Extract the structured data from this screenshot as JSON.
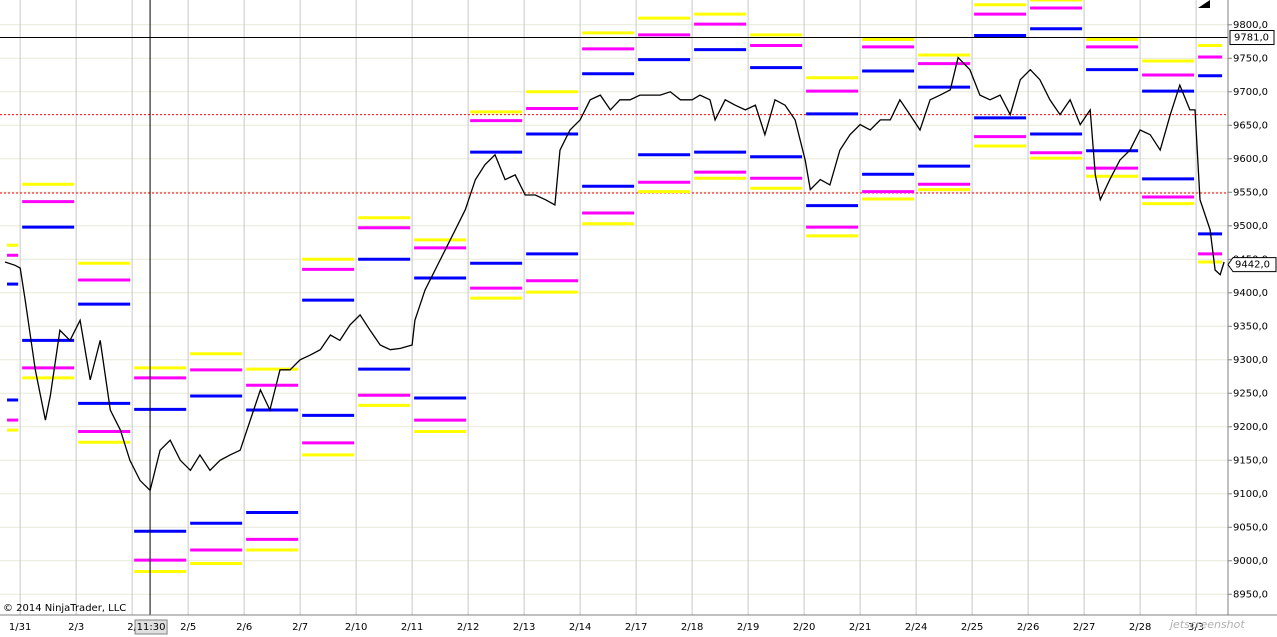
{
  "chart_data": {
    "type": "line",
    "categories": [
      "1/31",
      "2/3",
      "2/",
      "2/5",
      "2/6",
      "2/7",
      "2/10",
      "2/11",
      "2/12",
      "2/13",
      "2/14",
      "2/17",
      "2/18",
      "2/19",
      "2/20",
      "2/21",
      "2/24",
      "2/25",
      "2/26",
      "2/27",
      "2/28",
      "3/3"
    ],
    "xlim": [
      -0.36,
      21.57
    ],
    "ylim": [
      8934,
      9837
    ],
    "yticks": [
      {
        "value": 8950,
        "label": "8950,0"
      },
      {
        "value": 9000,
        "label": "9000,0"
      },
      {
        "value": 9050,
        "label": "9050,0"
      },
      {
        "value": 9100,
        "label": "9100,0"
      },
      {
        "value": 9150,
        "label": "9150,0"
      },
      {
        "value": 9200,
        "label": "9200,0"
      },
      {
        "value": 9250,
        "label": "9250,0"
      },
      {
        "value": 9300,
        "label": "9300,0"
      },
      {
        "value": 9350,
        "label": "9350,0"
      },
      {
        "value": 9400,
        "label": "9400,0"
      },
      {
        "value": 9450,
        "label": "9450,0"
      },
      {
        "value": 9500,
        "label": "9500,0"
      },
      {
        "value": 9550,
        "label": "9550,0"
      },
      {
        "value": 9600,
        "label": "9600,0"
      },
      {
        "value": 9650,
        "label": "9650,0"
      },
      {
        "value": 9700,
        "label": "9700,0"
      },
      {
        "value": 9750,
        "label": "9750,0"
      },
      {
        "value": 9800,
        "label": "9800,0"
      }
    ],
    "grid": true,
    "x": [
      -0.27,
      -0.09,
      0,
      0.09,
      0.27,
      0.45,
      0.54,
      0.71,
      0.89,
      1.07,
      1.25,
      1.43,
      1.61,
      1.79,
      1.96,
      2.14,
      2.32,
      2.5,
      2.68,
      2.86,
      3.04,
      3.21,
      3.39,
      3.57,
      3.75,
      3.93,
      4.11,
      4.29,
      4.46,
      4.64,
      4.82,
      5,
      5.18,
      5.36,
      5.54,
      5.71,
      5.89,
      6.07,
      6.25,
      6.43,
      6.61,
      6.79,
      7,
      7.05,
      7.23,
      7.41,
      7.59,
      7.77,
      7.95,
      8.13,
      8.3,
      8.48,
      8.66,
      8.84,
      9.02,
      9.2,
      9.38,
      9.55,
      9.64,
      9.82,
      10,
      10.18,
      10.36,
      10.54,
      10.71,
      10.89,
      11.07,
      11.25,
      11.43,
      11.61,
      11.79,
      12,
      12.14,
      12.32,
      12.41,
      12.59,
      12.77,
      12.95,
      13.13,
      13.3,
      13.48,
      13.66,
      13.84,
      14.02,
      14.11,
      14.29,
      14.46,
      14.64,
      14.82,
      15,
      15.18,
      15.36,
      15.54,
      15.71,
      15.89,
      16.07,
      16.25,
      16.43,
      16.61,
      16.75,
      16.96,
      17.14,
      17.32,
      17.5,
      17.68,
      17.86,
      18.04,
      18.21,
      18.39,
      18.57,
      18.75,
      18.93,
      19.11,
      19.2,
      19.29,
      19.46,
      19.64,
      19.82,
      20,
      20.18,
      20.36,
      20.54,
      20.71,
      20.89,
      20.98,
      21.07,
      21.25,
      21.34,
      21.43,
      21.5
    ],
    "series": [
      {
        "color": "#000000",
        "values": [
          9446,
          9441,
          9437,
          9389,
          9285,
          9210,
          9247,
          9344,
          9329,
          9359,
          9270,
          9329,
          9225,
          9195,
          9150,
          9120,
          9105,
          9165,
          9180,
          9150,
          9135,
          9158,
          9135,
          9150,
          9158,
          9165,
          9210,
          9255,
          9225,
          9285,
          9285,
          9300,
          9307,
          9315,
          9337,
          9329,
          9352,
          9367,
          9344,
          9322,
          9315,
          9317,
          9322,
          9359,
          9404,
          9434,
          9464,
          9494,
          9524,
          9569,
          9591,
          9606,
          9569,
          9576,
          9546,
          9546,
          9539,
          9531,
          9613,
          9643,
          9658,
          9688,
          9695,
          9673,
          9688,
          9688,
          9695,
          9695,
          9695,
          9700,
          9688,
          9688,
          9695,
          9688,
          9658,
          9688,
          9680,
          9673,
          9680,
          9636,
          9688,
          9680,
          9658,
          9598,
          9554,
          9569,
          9561,
          9613,
          9636,
          9651,
          9643,
          9658,
          9658,
          9688,
          9666,
          9643,
          9688,
          9695,
          9703,
          9751,
          9733,
          9695,
          9688,
          9695,
          9666,
          9718,
          9733,
          9718,
          9688,
          9666,
          9688,
          9651,
          9673,
          9576,
          9539,
          9569,
          9598,
          9613,
          9643,
          9636,
          9613,
          9666,
          9710,
          9673,
          9673,
          9539,
          9494,
          9434,
          9427,
          9446
        ]
      }
    ],
    "levels": [
      [
        9471,
        9456,
        9413,
        9240,
        9210,
        9195
      ],
      [
        9562,
        9536,
        9498,
        9329,
        9288,
        9273
      ],
      [
        9444,
        9419,
        9383,
        9235,
        9193,
        9177
      ],
      [
        9288,
        9273,
        9226,
        9044,
        9001,
        8984
      ],
      [
        9309,
        9285,
        9246,
        9056,
        9016,
        8996
      ],
      [
        9286,
        9262,
        9225,
        9072,
        9032,
        9016
      ],
      [
        9450,
        9435,
        9389,
        9217,
        9176,
        9158
      ],
      [
        9512,
        9497,
        9450,
        9286,
        9247,
        9232
      ],
      [
        9479,
        9467,
        9422,
        9243,
        9210,
        9193
      ],
      [
        9670,
        9657,
        9610,
        9444,
        9407,
        9392
      ],
      [
        9700,
        9675,
        9637,
        9458,
        9418,
        9401
      ],
      [
        9788,
        9764,
        9727,
        9559,
        9519,
        9503
      ],
      [
        9810,
        9785,
        9748,
        9606,
        9565,
        9551
      ],
      [
        9816,
        9801,
        9763,
        9610,
        9580,
        9571
      ],
      [
        9785,
        9769,
        9736,
        9603,
        9571,
        9556
      ],
      [
        9721,
        9701,
        9667,
        9530,
        9498,
        9485
      ],
      [
        9778,
        9767,
        9731,
        9577,
        9551,
        9540
      ],
      [
        9755,
        9742,
        9707,
        9589,
        9562,
        9554
      ],
      [
        9830,
        9816,
        9784,
        9661,
        9633,
        9619
      ],
      [
        9837,
        9825,
        9794,
        9637,
        9609,
        9601
      ],
      [
        9778,
        9767,
        9733,
        9612,
        9586,
        9574
      ],
      [
        9746,
        9725,
        9701,
        9570,
        9543,
        9533
      ],
      [
        9769,
        9752,
        9724,
        9488,
        9458,
        9446
      ]
    ],
    "level_colors": [
      "#ffff00",
      "#ff00ff",
      "#0000ff",
      "#0000ff",
      "#ff00ff",
      "#ffff00"
    ],
    "hlines": [
      {
        "value": 9666,
        "color": "#ff0000"
      },
      {
        "value": 9549,
        "color": "#ff0000"
      }
    ],
    "crosshair": {
      "x": 2.32,
      "x_label": "11:30",
      "y": {
        "value": 9781,
        "label": "9781,0"
      }
    },
    "last_price": {
      "value": 9442,
      "label": "9442,0"
    },
    "copyright": "© 2014 NinjaTrader, LLC",
    "watermark": "jetscreenshot"
  }
}
